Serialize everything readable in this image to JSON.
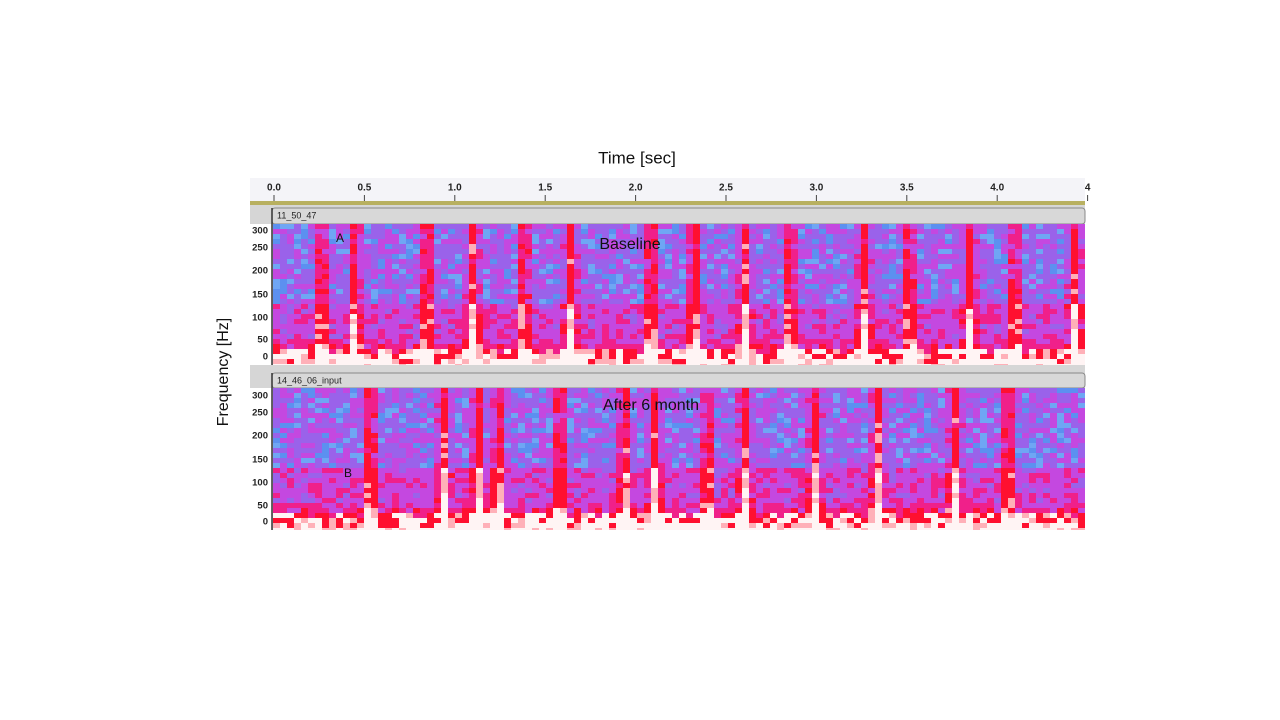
{
  "ruler": {
    "label": "Time [sec]",
    "ticks": [
      "0.0",
      "0.5",
      "1.0",
      "1.5",
      "2.0",
      "2.5",
      "3.0",
      "3.5",
      "4.0",
      "4"
    ]
  },
  "y_axis_label": "Frequency [Hz]",
  "tracks": [
    {
      "name": "11_50_47",
      "yticks": [
        "300",
        "250",
        "200",
        "150",
        "100",
        "50",
        "0"
      ],
      "annotations": [
        "A",
        "Baseline"
      ]
    },
    {
      "name": "14_46_06_input",
      "yticks": [
        "300",
        "250",
        "200",
        "150",
        "100",
        "50",
        "0"
      ],
      "annotations": [
        "B",
        "After 6 month"
      ]
    }
  ]
}
